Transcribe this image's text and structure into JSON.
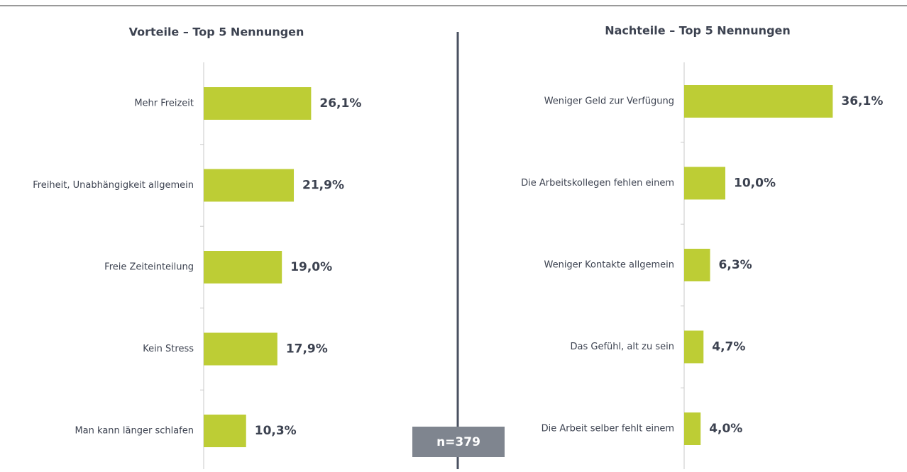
{
  "chart_data": [
    {
      "type": "bar",
      "title": "Vorteile – Top 5 Nennungen",
      "categories": [
        "Mehr Freizeit",
        "Freiheit, Unabhängigkeit allgemein",
        "Freie Zeiteinteilung",
        "Kein Stress",
        "Man kann länger schlafen"
      ],
      "values": [
        26.1,
        21.9,
        19.0,
        17.9,
        10.3
      ],
      "value_labels": [
        "26,1%",
        "21,9%",
        "19,0%",
        "17,9%",
        "10,3%"
      ],
      "color": "#bdcd35"
    },
    {
      "type": "bar",
      "title": "Nachteile – Top 5 Nennungen",
      "categories": [
        "Weniger Geld zur Verfügung",
        "Die Arbeitskollegen fehlen einem",
        "Weniger Kontakte allgemein",
        "Das Gefühl, alt zu sein",
        "Die Arbeit selber fehlt einem"
      ],
      "values": [
        36.1,
        10.0,
        6.3,
        4.7,
        4.0
      ],
      "value_labels": [
        "36,1%",
        "10,0%",
        "6,3%",
        "4,7%",
        "4,0%"
      ],
      "color": "#bdcd35"
    }
  ],
  "annotation": "n=379"
}
